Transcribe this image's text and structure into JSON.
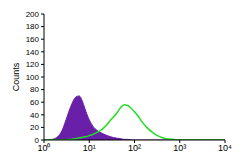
{
  "chart_data": {
    "type": "line",
    "ylabel": "Counts",
    "log": "x",
    "xlim": [
      1,
      10000
    ],
    "ylim": [
      0,
      200
    ],
    "xticks": [
      {
        "value": 1,
        "label": "10⁰"
      },
      {
        "value": 10,
        "label": "10¹"
      },
      {
        "value": 100,
        "label": "10²"
      },
      {
        "value": 1000,
        "label": "10³"
      },
      {
        "value": 10000,
        "label": "10⁴"
      }
    ],
    "yticks": [
      0,
      20,
      40,
      60,
      80,
      100,
      120,
      140,
      160,
      180,
      200
    ],
    "grid": false,
    "x": [
      1,
      1.5,
      2,
      2.5,
      3,
      4,
      5,
      6,
      7,
      8,
      10,
      12,
      15,
      20,
      25,
      30,
      40,
      50,
      60,
      70,
      80,
      100,
      120,
      150,
      200,
      250,
      300,
      400,
      500,
      700,
      1000,
      2000,
      5000,
      10000
    ],
    "series": [
      {
        "type": "area",
        "color": "#6a1fa8",
        "values": [
          0,
          1,
          5,
          15,
          30,
          55,
          68,
          70,
          62,
          50,
          32,
          22,
          15,
          10,
          7,
          5,
          3,
          2,
          1,
          1,
          0.5,
          0,
          0,
          0,
          0,
          0,
          0,
          0,
          0,
          0,
          0,
          0,
          0,
          0
        ]
      },
      {
        "type": "line",
        "color": "#22dd22",
        "values": [
          0,
          0,
          0,
          0,
          0,
          1,
          2,
          3,
          4,
          5,
          7,
          9,
          12,
          18,
          25,
          32,
          42,
          52,
          56,
          55,
          52,
          45,
          38,
          28,
          18,
          12,
          8,
          4,
          2,
          1,
          0,
          0,
          0,
          0
        ]
      }
    ]
  }
}
